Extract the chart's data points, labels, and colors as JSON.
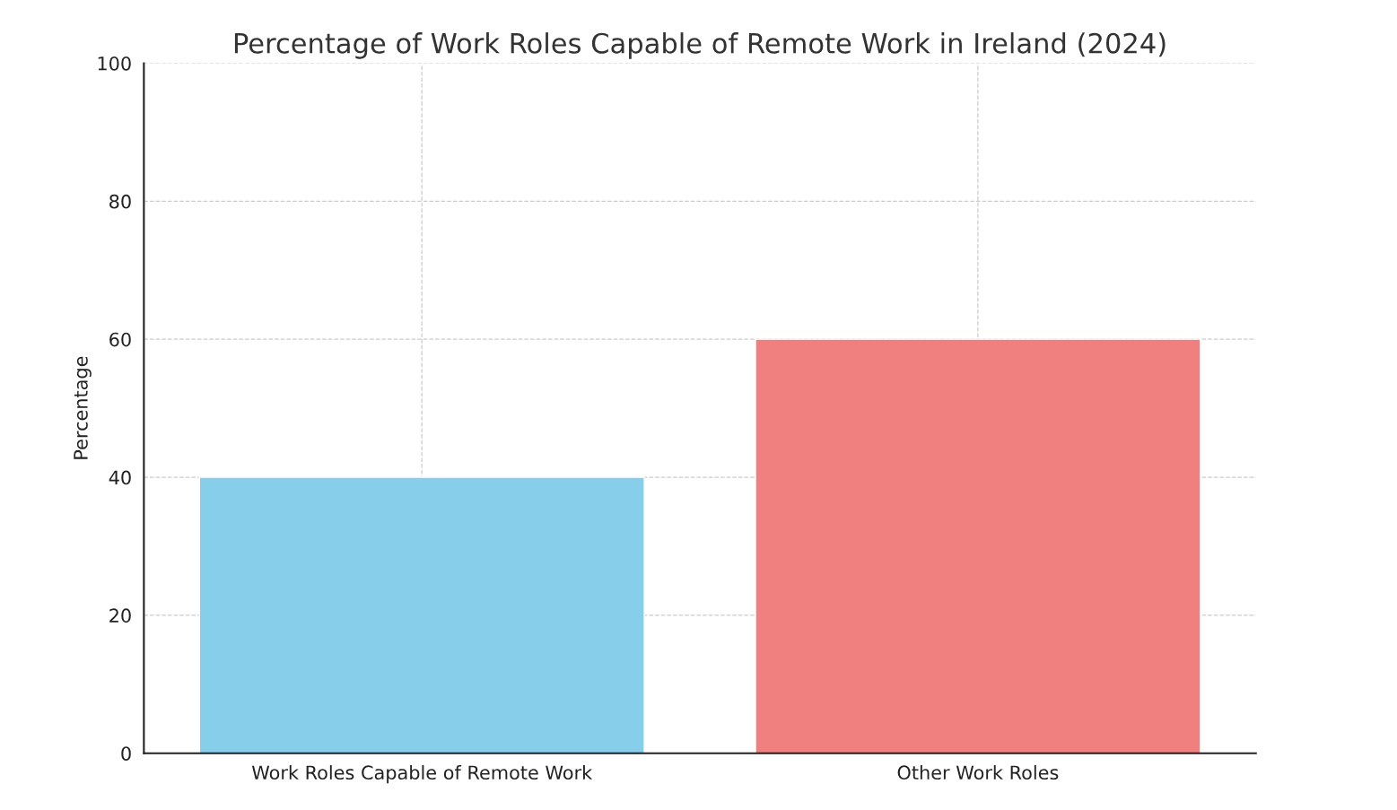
{
  "chart_data": {
    "type": "bar",
    "title": "Percentage of Work Roles Capable of Remote Work in Ireland (2024)",
    "ylabel": "Percentage",
    "categories": [
      "Work Roles Capable of Remote Work",
      "Other Work Roles"
    ],
    "values": [
      40,
      60
    ],
    "colors": [
      "#87ceeb",
      "#f08080"
    ],
    "ylim": [
      0,
      100
    ],
    "yticks": [
      0,
      20,
      40,
      60,
      80,
      100
    ],
    "grid": true
  }
}
